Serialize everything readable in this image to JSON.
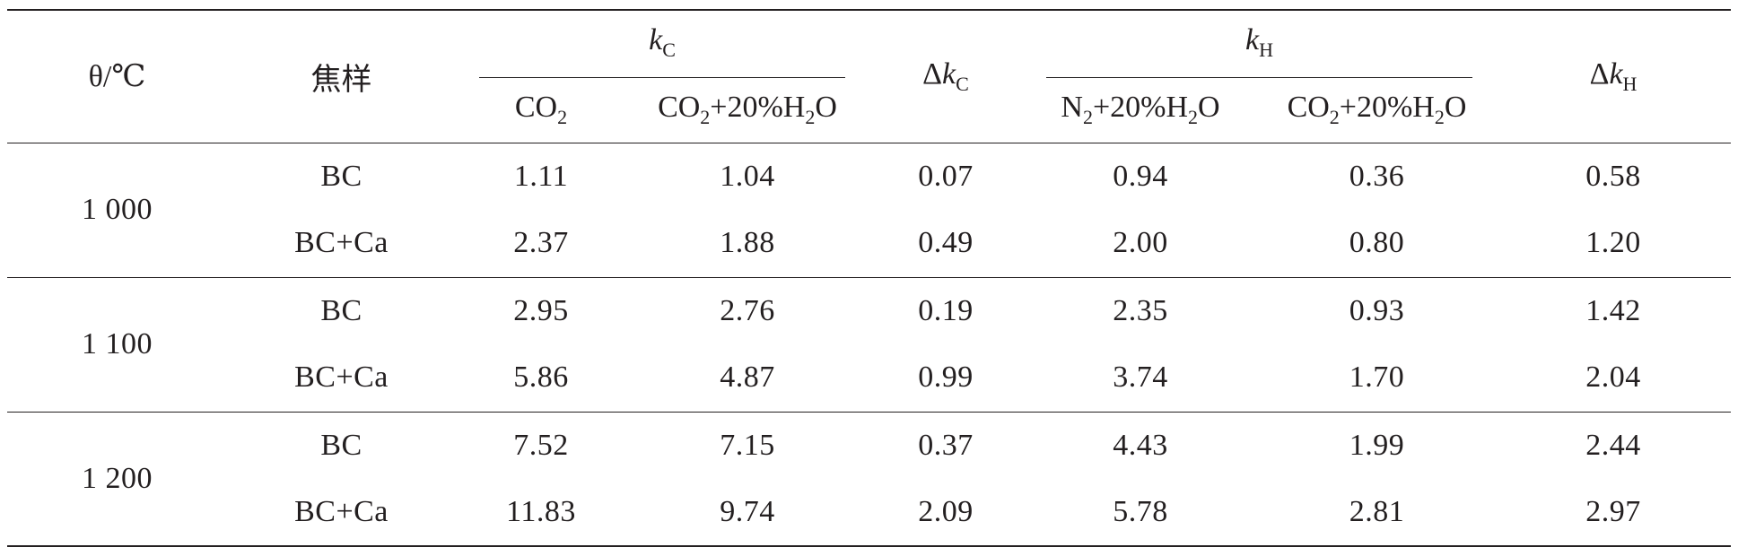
{
  "header": {
    "theta": "θ/℃",
    "sample": "焦样",
    "kc": {
      "var": "k",
      "sub": "C"
    },
    "delta_kc": {
      "delta": "Δ",
      "var": "k",
      "sub": "C"
    },
    "kh": {
      "var": "k",
      "sub": "H"
    },
    "delta_kh": {
      "delta": "Δ",
      "var": "k",
      "sub": "H"
    },
    "sub_kc": [
      {
        "parts": [
          {
            "t": "CO"
          },
          {
            "sub": "2"
          }
        ]
      },
      {
        "parts": [
          {
            "t": "CO"
          },
          {
            "sub": "2"
          },
          {
            "t": "+20%H"
          },
          {
            "sub": "2"
          },
          {
            "t": "O"
          }
        ]
      }
    ],
    "sub_kh": [
      {
        "parts": [
          {
            "t": "N"
          },
          {
            "sub": "2"
          },
          {
            "t": "+20%H"
          },
          {
            "sub": "2"
          },
          {
            "t": "O"
          }
        ]
      },
      {
        "parts": [
          {
            "t": "CO"
          },
          {
            "sub": "2"
          },
          {
            "t": "+20%H"
          },
          {
            "sub": "2"
          },
          {
            "t": "O"
          }
        ]
      }
    ]
  },
  "groups": [
    {
      "temp": "1 000",
      "rows": [
        {
          "sample": "BC",
          "kc_co2": "1.11",
          "kc_co2_h2o": "1.04",
          "dkc": "0.07",
          "kh_n2_h2o": "0.94",
          "kh_co2_h2o": "0.36",
          "dkh": "0.58"
        },
        {
          "sample": "BC+Ca",
          "kc_co2": "2.37",
          "kc_co2_h2o": "1.88",
          "dkc": "0.49",
          "kh_n2_h2o": "2.00",
          "kh_co2_h2o": "0.80",
          "dkh": "1.20"
        }
      ]
    },
    {
      "temp": "1 100",
      "rows": [
        {
          "sample": "BC",
          "kc_co2": "2.95",
          "kc_co2_h2o": "2.76",
          "dkc": "0.19",
          "kh_n2_h2o": "2.35",
          "kh_co2_h2o": "0.93",
          "dkh": "1.42"
        },
        {
          "sample": "BC+Ca",
          "kc_co2": "5.86",
          "kc_co2_h2o": "4.87",
          "dkc": "0.99",
          "kh_n2_h2o": "3.74",
          "kh_co2_h2o": "1.70",
          "dkh": "2.04"
        }
      ]
    },
    {
      "temp": "1 200",
      "rows": [
        {
          "sample": "BC",
          "kc_co2": "7.52",
          "kc_co2_h2o": "7.15",
          "dkc": "0.37",
          "kh_n2_h2o": "4.43",
          "kh_co2_h2o": "1.99",
          "dkh": "2.44"
        },
        {
          "sample": "BC+Ca",
          "kc_co2": "11.83",
          "kc_co2_h2o": "9.74",
          "dkc": "2.09",
          "kh_n2_h2o": "5.78",
          "kh_co2_h2o": "2.81",
          "dkh": "2.97"
        }
      ]
    }
  ]
}
